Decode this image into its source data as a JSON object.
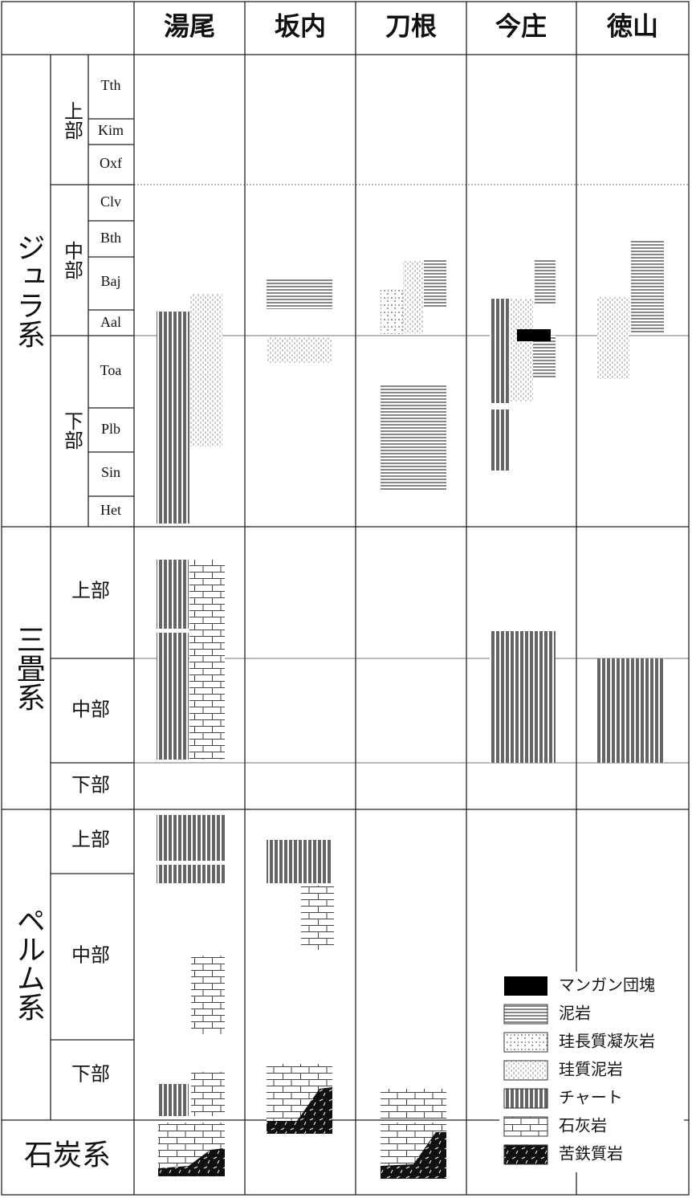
{
  "header": {
    "localities": [
      "湯尾",
      "坂内",
      "刀根",
      "今庄",
      "徳山"
    ]
  },
  "systems": [
    {
      "name": "ジュラ系",
      "series": [
        {
          "name": "上部",
          "stages": [
            "Tth",
            "Kim",
            "Oxf"
          ]
        },
        {
          "name": "中部",
          "stages": [
            "Clv",
            "Bth",
            "Baj",
            "Aal"
          ]
        },
        {
          "name": "下部",
          "stages": [
            "Toa",
            "Plb",
            "Sin",
            "Het"
          ]
        }
      ]
    },
    {
      "name": "三畳系",
      "series": [
        {
          "name": "上部"
        },
        {
          "name": "中部"
        },
        {
          "name": "下部"
        }
      ]
    },
    {
      "name": "ペルム系",
      "series": [
        {
          "name": "上部"
        },
        {
          "name": "中部"
        },
        {
          "name": "下部"
        }
      ]
    },
    {
      "name": "石炭系"
    }
  ],
  "legend": [
    "マンガン団塊",
    "泥岩",
    "珪長質凝灰岩",
    "珪質泥岩",
    "チャート",
    "石灰岩",
    "苦鉄質岩"
  ]
}
